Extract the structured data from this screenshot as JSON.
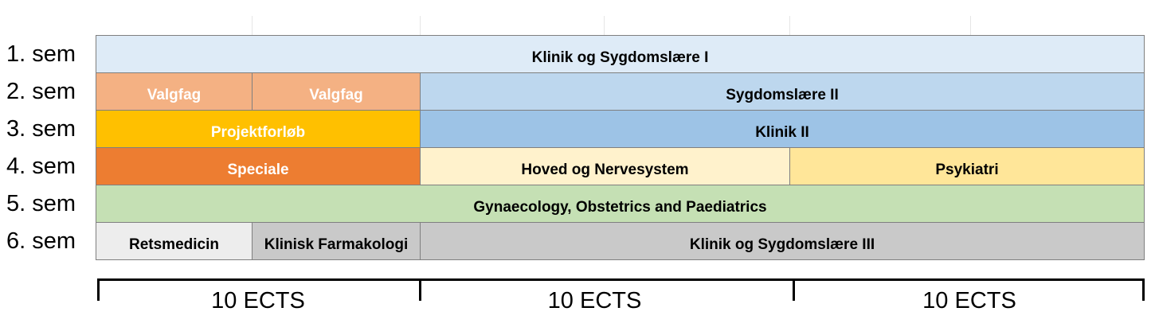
{
  "semesters": [
    "1. sem",
    "2. sem",
    "3. sem",
    "4. sem",
    "5. sem",
    "6. sem"
  ],
  "courses": {
    "sem1_klinik_sygdomslaere_1": "Klinik og Sygdomslære I",
    "sem2_valgfag_a": "Valgfag",
    "sem2_valgfag_b": "Valgfag",
    "sem2_sygdomslaere_2": "Sygdomslære II",
    "sem3_projektforloeb": "Projektforløb",
    "sem3_klinik_2": "Klinik II",
    "sem4_speciale": "Speciale",
    "sem4_hoved_nervesystem": "Hoved og Nervesystem",
    "sem4_psykiatri": "Psykiatri",
    "sem5_gynaecology": "Gynaecology, Obstetrics and Paediatrics",
    "sem6_retsmedicin": "Retsmedicin",
    "sem6_klinisk_farmakologi": "Klinisk Farmakologi",
    "sem6_klinik_sygdomslaere_3": "Klinik og Sygdomslære III"
  },
  "ects": [
    "10 ECTS",
    "10 ECTS",
    "10 ECTS"
  ],
  "colors": {
    "light_blue": "#deebf7",
    "salmon": "#f4b183",
    "mid_blue": "#bdd7ee",
    "gold": "#ffc000",
    "blue": "#9dc3e6",
    "orange": "#ed7d31",
    "cream": "#fff2cc",
    "yellow": "#ffe699",
    "green": "#c5e0b4",
    "light_gray": "#ededed",
    "gray": "#c9c9c9"
  }
}
